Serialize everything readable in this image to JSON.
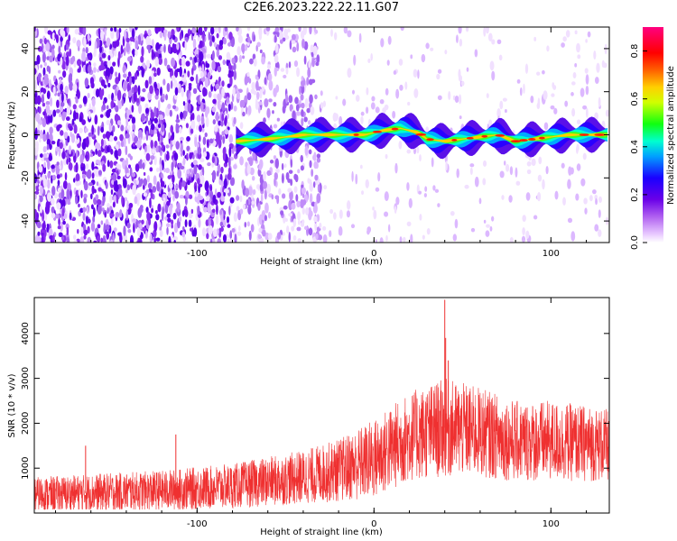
{
  "title": "C2E6.2023.222.22.11.G07",
  "chart_data": [
    {
      "type": "heatmap",
      "xlabel": "Height of straight line (km)",
      "ylabel": "Frequency (Hz)",
      "xlim": [
        -192,
        133
      ],
      "ylim": [
        -50,
        50
      ],
      "x_ticks": [
        -100,
        0,
        100
      ],
      "y_ticks": [
        -40,
        -20,
        0,
        20,
        40
      ],
      "colorbar": {
        "label": "Normalized spectral amplitude",
        "range": [
          0.0,
          0.9
        ],
        "ticks": [
          0.0,
          0.2,
          0.4,
          0.6,
          0.8
        ]
      },
      "ridge": {
        "start_km": -78,
        "end_km": 133,
        "points": [
          [
            -78,
            -3
          ],
          [
            -60,
            -2
          ],
          [
            -50,
            -1
          ],
          [
            -40,
            0
          ],
          [
            -20,
            0
          ],
          [
            -5,
            0
          ],
          [
            5,
            2
          ],
          [
            15,
            3
          ],
          [
            25,
            1
          ],
          [
            30,
            -2
          ],
          [
            40,
            -3
          ],
          [
            50,
            -2
          ],
          [
            60,
            -1
          ],
          [
            70,
            0
          ],
          [
            80,
            -3
          ],
          [
            90,
            -2
          ],
          [
            100,
            -1
          ],
          [
            110,
            0
          ],
          [
            120,
            0
          ],
          [
            133,
            0
          ]
        ],
        "peak_amplitude": 0.9
      },
      "noise_region_end_km": -30
    },
    {
      "type": "line",
      "xlabel": "Height of straight line (km)",
      "ylabel": "SNR (10 * v/v)",
      "xlim": [
        -192,
        133
      ],
      "ylim": [
        0,
        4800
      ],
      "x_ticks": [
        -100,
        0,
        100
      ],
      "y_ticks": [
        1000,
        2000,
        3000,
        4000
      ],
      "color": "#ef3030",
      "envelope_km": [
        -192,
        -160,
        -120,
        -80,
        -60,
        -40,
        -20,
        0,
        20,
        40,
        60,
        80,
        100,
        120,
        133
      ],
      "envelope_mean": [
        400,
        450,
        500,
        600,
        700,
        800,
        950,
        1200,
        1700,
        1900,
        1800,
        1600,
        1600,
        1550,
        1500
      ],
      "envelope_spread": [
        400,
        420,
        450,
        500,
        550,
        600,
        700,
        900,
        1000,
        1100,
        1000,
        900,
        900,
        850,
        800
      ],
      "spikes": [
        [
          -163,
          1500
        ],
        [
          -112,
          1750
        ],
        [
          40,
          4750
        ],
        [
          40.5,
          3900
        ],
        [
          42,
          3400
        ]
      ]
    }
  ]
}
